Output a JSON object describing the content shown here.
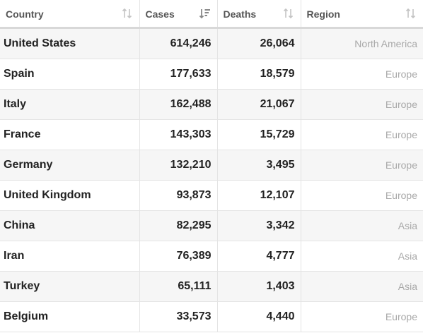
{
  "table": {
    "columns": [
      {
        "label": "Country",
        "sort_state": "unsorted",
        "icon": "sort-unsorted-icon"
      },
      {
        "label": "Cases",
        "sort_state": "descending",
        "icon": "sort-descending-icon"
      },
      {
        "label": "Deaths",
        "sort_state": "unsorted",
        "icon": "sort-unsorted-icon"
      },
      {
        "label": "Region",
        "sort_state": "unsorted",
        "icon": "sort-unsorted-icon"
      }
    ],
    "rows": [
      {
        "country": "United States",
        "cases": "614,246",
        "deaths": "26,064",
        "region": "North America"
      },
      {
        "country": "Spain",
        "cases": "177,633",
        "deaths": "18,579",
        "region": "Europe"
      },
      {
        "country": "Italy",
        "cases": "162,488",
        "deaths": "21,067",
        "region": "Europe"
      },
      {
        "country": "France",
        "cases": "143,303",
        "deaths": "15,729",
        "region": "Europe"
      },
      {
        "country": "Germany",
        "cases": "132,210",
        "deaths": "3,495",
        "region": "Europe"
      },
      {
        "country": "United Kingdom",
        "cases": "93,873",
        "deaths": "12,107",
        "region": "Europe"
      },
      {
        "country": "China",
        "cases": "82,295",
        "deaths": "3,342",
        "region": "Asia"
      },
      {
        "country": "Iran",
        "cases": "76,389",
        "deaths": "4,777",
        "region": "Asia"
      },
      {
        "country": "Turkey",
        "cases": "65,111",
        "deaths": "1,403",
        "region": "Asia"
      },
      {
        "country": "Belgium",
        "cases": "33,573",
        "deaths": "4,440",
        "region": "Europe"
      }
    ]
  },
  "colors": {
    "header_text": "#555555",
    "cell_text": "#222222",
    "region_text": "#a8a8a8",
    "sort_icon_inactive": "#c4c4c4",
    "sort_icon_active": "#888888",
    "row_stripe": "#f6f6f6"
  }
}
